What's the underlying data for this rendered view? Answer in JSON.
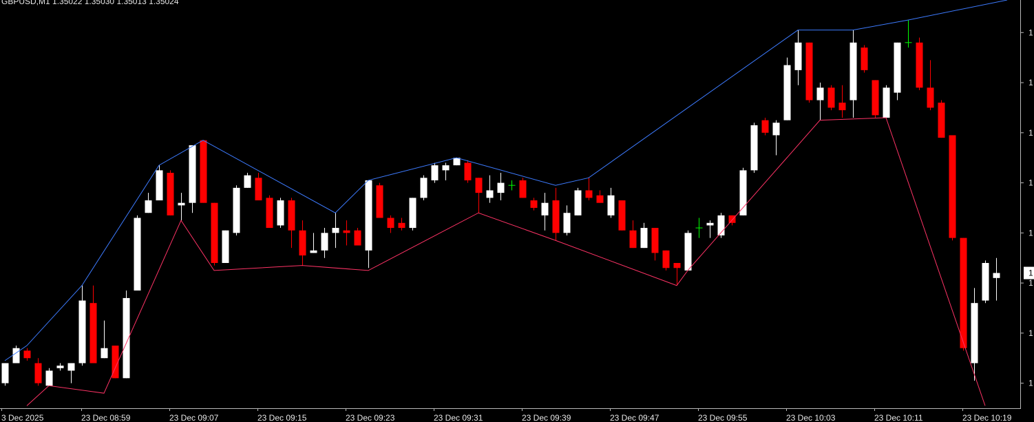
{
  "chart_data": {
    "type": "candlestick",
    "title": "GBPUSD,M1  1.35022 1.35030 1.35013 1.35024",
    "open": [
      1.3498,
      1.34988,
      1.34993,
      1.34988,
      1.34979,
      1.34986,
      1.34985,
      1.34988,
      1.35012,
      1.3499,
      1.34995,
      1.34982,
      1.35017,
      1.35048,
      1.35053,
      1.35064,
      1.35051,
      1.35052,
      1.35077,
      1.35052,
      1.35028,
      1.3504,
      1.35058,
      1.35062,
      1.35054,
      1.35043,
      1.35053,
      1.35041,
      1.35032,
      1.35033,
      1.3504,
      1.35041,
      1.35041,
      1.35033,
      1.35059,
      1.35046,
      1.35044,
      1.35042,
      1.35054,
      1.35061,
      1.35065,
      1.35067,
      1.35068,
      1.35062,
      1.35054,
      1.35056,
      1.35059,
      1.35061,
      1.35053,
      1.35047,
      1.35053,
      1.3504,
      1.35047,
      1.35057,
      1.35055,
      1.35047,
      1.35053,
      1.35041,
      1.35034,
      1.35042,
      1.35033,
      1.35028,
      1.35025,
      1.35042,
      1.35043,
      1.35039,
      1.35047,
      1.35047,
      1.35065,
      1.35085,
      1.35079,
      1.35085,
      1.35105,
      1.35116,
      1.35093,
      1.35098,
      1.35092,
      1.35093,
      1.35114,
      1.35101,
      1.35086,
      1.35096,
      1.35116,
      1.35116,
      1.35098,
      1.35092,
      1.35079,
      1.35038,
      1.34988,
      1.35013,
      1.35022
    ],
    "high": [
      1.34988,
      1.34995,
      1.34994,
      1.3499,
      1.34986,
      1.34988,
      1.34988,
      1.35019,
      1.35019,
      1.35005,
      1.34995,
      1.35017,
      1.35047,
      1.35056,
      1.35067,
      1.35065,
      1.35056,
      1.35075,
      1.35077,
      1.35052,
      1.35041,
      1.35059,
      1.35064,
      1.35064,
      1.35055,
      1.35054,
      1.35054,
      1.35045,
      1.3504,
      1.35042,
      1.35048,
      1.35045,
      1.35042,
      1.35061,
      1.3506,
      1.35047,
      1.35046,
      1.35054,
      1.35063,
      1.35068,
      1.35068,
      1.3507,
      1.35069,
      1.35062,
      1.35063,
      1.35064,
      1.35061,
      1.35062,
      1.35054,
      1.35056,
      1.35058,
      1.35051,
      1.35058,
      1.35062,
      1.35057,
      1.35058,
      1.35053,
      1.35045,
      1.35044,
      1.35042,
      1.35033,
      1.35028,
      1.35041,
      1.35046,
      1.35045,
      1.35048,
      1.35047,
      1.35066,
      1.35084,
      1.35086,
      1.35085,
      1.3511,
      1.35121,
      1.35116,
      1.351,
      1.35099,
      1.35099,
      1.35121,
      1.35115,
      1.35101,
      1.35099,
      1.35116,
      1.35125,
      1.35118,
      1.35109,
      1.35093,
      1.35079,
      1.35038,
      1.35018,
      1.35029,
      1.3503
    ],
    "low": [
      1.34979,
      1.34988,
      1.34989,
      1.34979,
      1.34979,
      1.34985,
      1.3498,
      1.34987,
      1.34988,
      1.3499,
      1.34982,
      1.34982,
      1.35017,
      1.35048,
      1.35053,
      1.35047,
      1.35045,
      1.35048,
      1.35052,
      1.35027,
      1.35028,
      1.35039,
      1.35058,
      1.35053,
      1.35042,
      1.35042,
      1.35034,
      1.35027,
      1.35032,
      1.3503,
      1.35034,
      1.35035,
      1.35035,
      1.35026,
      1.35046,
      1.3504,
      1.35041,
      1.35041,
      1.35053,
      1.3506,
      1.35061,
      1.35067,
      1.3506,
      1.35048,
      1.35052,
      1.35053,
      1.35057,
      1.35054,
      1.35049,
      1.35041,
      1.35037,
      1.35039,
      1.35047,
      1.35053,
      1.35052,
      1.35046,
      1.35041,
      1.35034,
      1.35034,
      1.35029,
      1.35025,
      1.35019,
      1.35025,
      1.35038,
      1.35038,
      1.35038,
      1.35043,
      1.35047,
      1.35064,
      1.35079,
      1.35071,
      1.35085,
      1.35099,
      1.35092,
      1.35085,
      1.35089,
      1.35086,
      1.35086,
      1.35104,
      1.35086,
      1.35086,
      1.35093,
      1.35114,
      1.35097,
      1.35089,
      1.35078,
      1.35037,
      1.34993,
      1.34981,
      1.35012,
      1.35013
    ],
    "close": [
      1.34988,
      1.34994,
      1.3499,
      1.3498,
      1.34985,
      1.34987,
      1.34988,
      1.35013,
      1.34988,
      1.34994,
      1.34982,
      1.35014,
      1.35046,
      1.35053,
      1.35065,
      1.35047,
      1.35052,
      1.35075,
      1.35052,
      1.35028,
      1.35041,
      1.35058,
      1.35063,
      1.35053,
      1.35042,
      1.35053,
      1.35041,
      1.35031,
      1.35033,
      1.3504,
      1.35042,
      1.3504,
      1.35035,
      1.35061,
      1.35046,
      1.35042,
      1.35042,
      1.35054,
      1.35062,
      1.35067,
      1.35067,
      1.3507,
      1.35061,
      1.35056,
      1.35057,
      1.3506,
      1.35059,
      1.35054,
      1.3505,
      1.35052,
      1.3504,
      1.35048,
      1.35057,
      1.35054,
      1.35052,
      1.35055,
      1.35041,
      1.35034,
      1.35042,
      1.35032,
      1.35026,
      1.35026,
      1.3504,
      1.35042,
      1.35044,
      1.35047,
      1.35044,
      1.35065,
      1.35083,
      1.3508,
      1.35084,
      1.35107,
      1.35116,
      1.35093,
      1.35098,
      1.3509,
      1.35089,
      1.35116,
      1.35105,
      1.35087,
      1.35098,
      1.35116,
      1.35116,
      1.35098,
      1.3509,
      1.35078,
      1.35038,
      1.34994,
      1.35012,
      1.35028,
      1.35024
    ],
    "colors": {
      "up": "#ffffff",
      "down": "#ff0000",
      "doji": "#00ff00"
    },
    "lines": [
      {
        "color": "#3d7bff",
        "x": [
          0,
          2,
          7,
          14,
          18,
          30,
          33,
          41,
          50,
          53,
          72,
          77,
          82,
          91
        ],
        "values": [
          1.34989,
          1.34995,
          1.35019,
          1.35067,
          1.35077,
          1.35048,
          1.35061,
          1.3507,
          1.35059,
          1.35062,
          1.35121,
          1.35121,
          1.35125,
          1.35133
        ]
      },
      {
        "color": "#ff3366",
        "x": [
          2,
          4,
          9,
          16,
          19,
          27,
          33,
          43,
          50,
          61,
          62,
          74,
          80,
          89
        ],
        "values": [
          1.34971,
          1.34979,
          1.34976,
          1.35045,
          1.35025,
          1.35027,
          1.35025,
          1.35048,
          1.35037,
          1.35019,
          1.35025,
          1.35085,
          1.35086,
          1.34971
        ]
      }
    ],
    "ylim": [
      1.3497,
      1.35133
    ],
    "yticks": [
      {
        "value": 1.3512,
        "label": "1"
      },
      {
        "value": 1.351,
        "label": "1"
      },
      {
        "value": 1.3508,
        "label": "1"
      },
      {
        "value": 1.3506,
        "label": "1"
      },
      {
        "value": 1.3504,
        "label": "1"
      },
      {
        "value": 1.3502,
        "label": "1"
      },
      {
        "value": 1.35,
        "label": "1"
      },
      {
        "value": 1.3498,
        "label": "1"
      }
    ],
    "xtick_labels": [
      "3 Dec 2025",
      "23 Dec 08:59",
      "23 Dec 09:07",
      "23 Dec 09:15",
      "23 Dec 09:23",
      "23 Dec 09:31",
      "23 Dec 09:39",
      "23 Dec 09:47",
      "23 Dec 09:55",
      "23 Dec 10:03",
      "23 Dec 10:11",
      "23 Dec 10:19"
    ],
    "price_tag": {
      "value": 1.35024,
      "label": "1"
    }
  }
}
